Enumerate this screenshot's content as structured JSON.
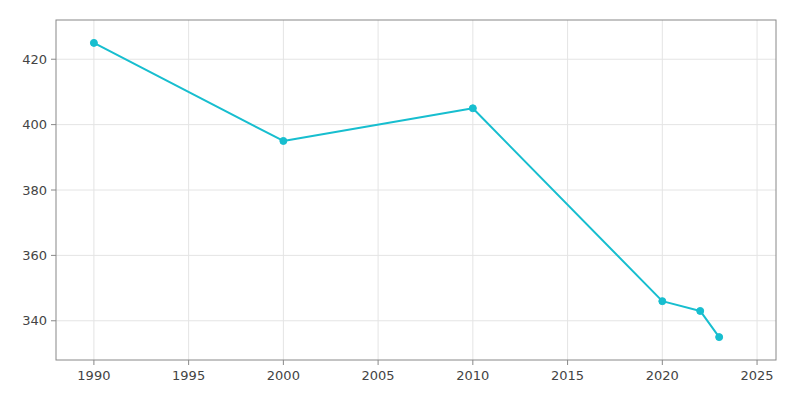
{
  "chart_data": {
    "type": "line",
    "x": [
      1990,
      2000,
      2010,
      2020,
      2022,
      2023
    ],
    "values": [
      425,
      395,
      405,
      346,
      343,
      335
    ],
    "color": "#17BECF",
    "marker": "circle",
    "xlim": [
      1988,
      2026
    ],
    "ylim": [
      328,
      432
    ],
    "xticks": [
      1990,
      1995,
      2000,
      2005,
      2010,
      2015,
      2020,
      2025
    ],
    "yticks": [
      340,
      360,
      380,
      400,
      420
    ],
    "grid": true
  }
}
